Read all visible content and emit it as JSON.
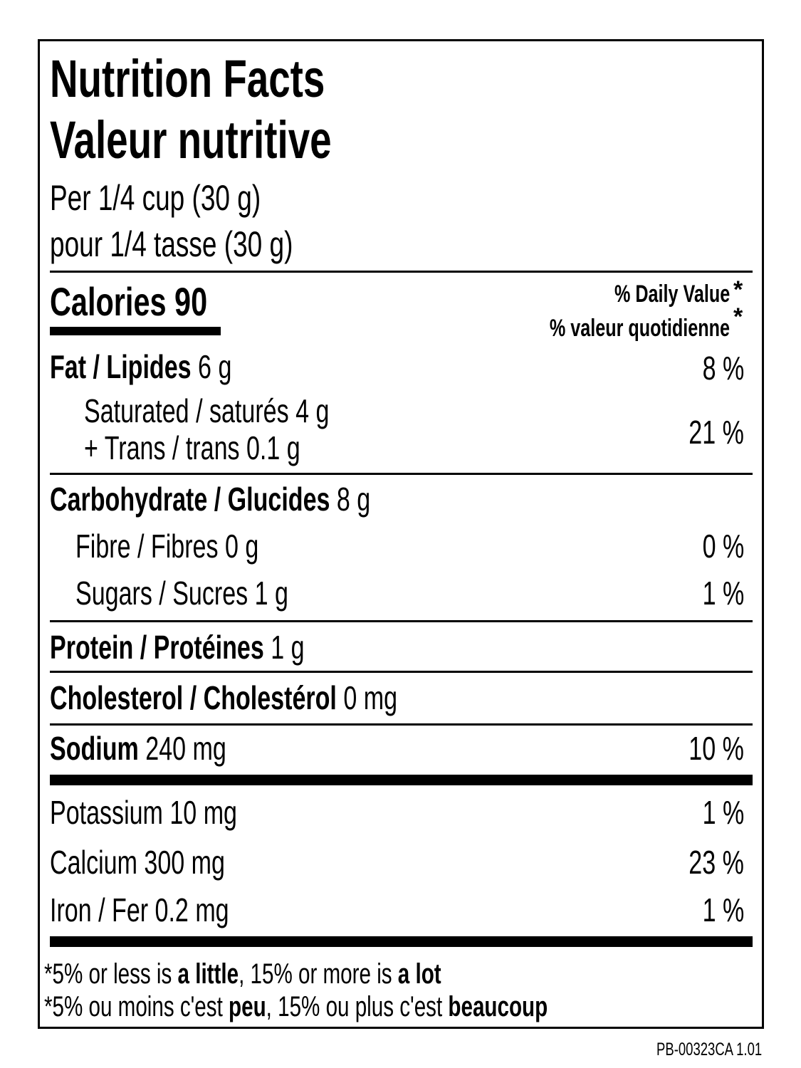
{
  "title_en": "Nutrition Facts",
  "title_fr": "Valeur nutritive",
  "serving_en": "Per 1/4 cup (30 g)",
  "serving_fr": "pour 1/4 tasse (30 g)",
  "calories_label": "Calories",
  "calories_value": "90",
  "dv_en": "% Daily Value",
  "dv_fr": "% valeur quotidienne",
  "asterisk": "*",
  "nutrients": {
    "fat": {
      "label": "Fat / Lipides",
      "amount": "6 g",
      "dv": "8 %"
    },
    "saturated": {
      "label": "Saturated / saturés 4 g"
    },
    "trans": {
      "label": "+ Trans / trans 0.1 g"
    },
    "sat_trans_dv": "21 %",
    "carb": {
      "label": "Carbohydrate / Glucides",
      "amount": "8 g"
    },
    "fibre": {
      "label": "Fibre / Fibres 0 g",
      "dv": "0 %"
    },
    "sugars": {
      "label": "Sugars / Sucres 1 g",
      "dv": "1 %"
    },
    "protein": {
      "label": "Protein / Protéines",
      "amount": "1 g"
    },
    "cholesterol": {
      "label": "Cholesterol / Cholestérol",
      "amount": "0 mg"
    },
    "sodium": {
      "label": "Sodium",
      "amount": "240 mg",
      "dv": "10 %"
    },
    "potassium": {
      "label": "Potassium 10 mg",
      "dv": "1 %"
    },
    "calcium": {
      "label": "Calcium 300 mg",
      "dv": "23 %"
    },
    "iron": {
      "label": "Iron / Fer 0.2 mg",
      "dv": "1 %"
    }
  },
  "footnote_en": {
    "p1": "*5% or less is ",
    "b1": "a little",
    "p2": ", 15% or more is ",
    "b2": "a lot"
  },
  "footnote_fr": {
    "p1": "*5% ou moins c'est ",
    "b1": "peu",
    "p2": ", 15% ou plus c'est ",
    "b2": "beaucoup"
  },
  "product_code": "PB-00323CA 1.01"
}
